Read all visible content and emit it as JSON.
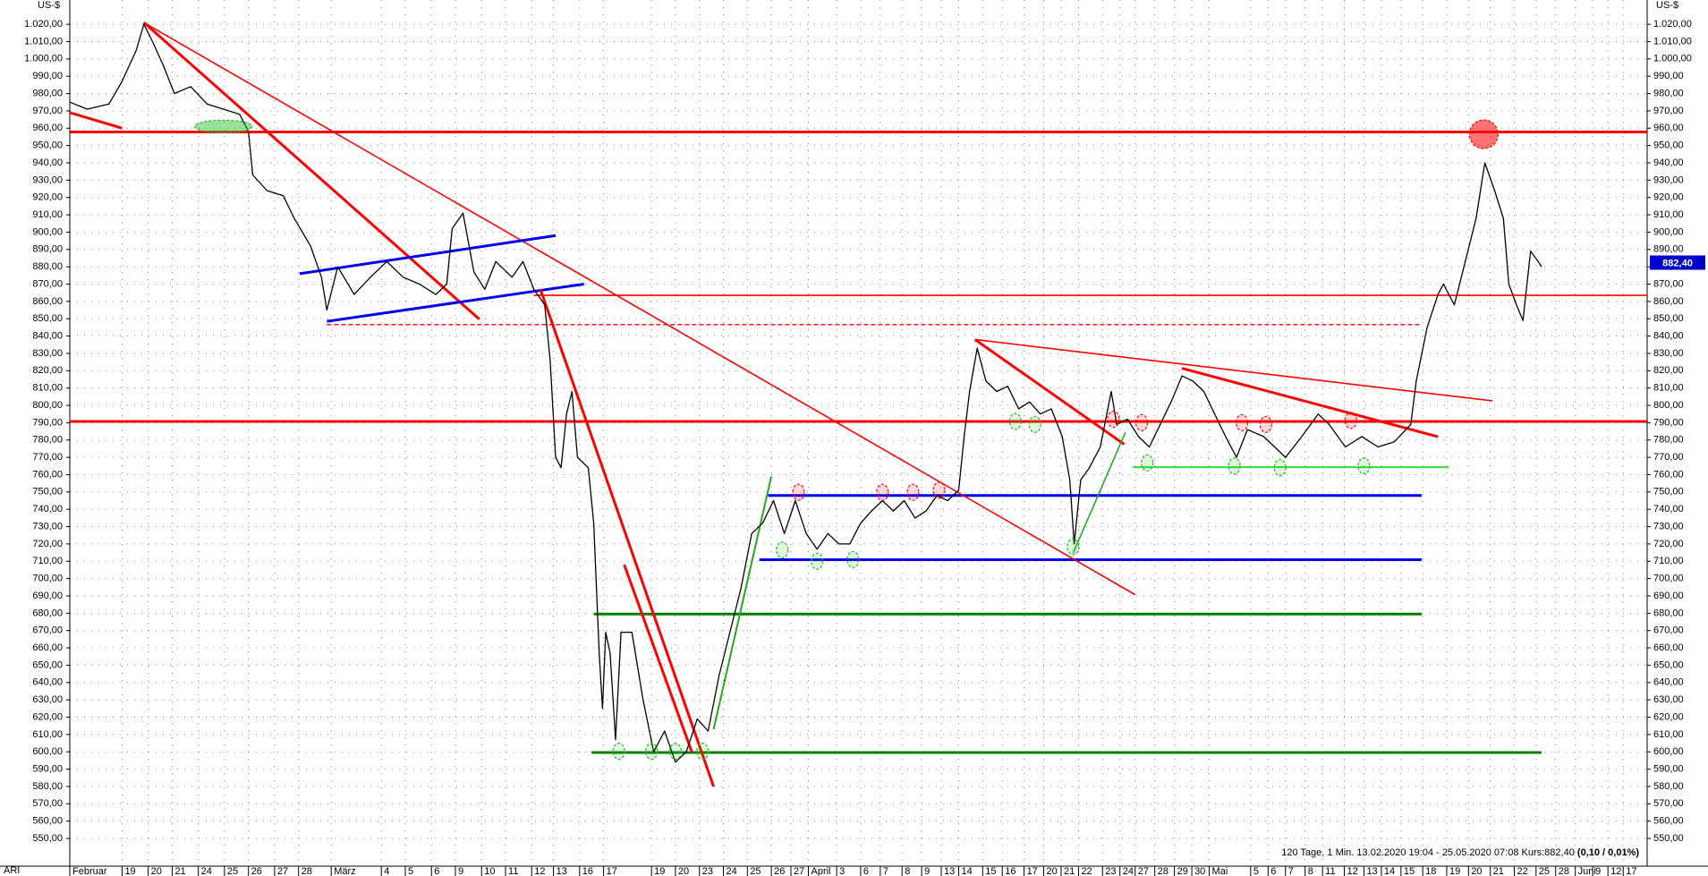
{
  "chart_data": {
    "type": "line",
    "y_unit_label": "US-$",
    "instrument": "ARI",
    "info": "120 Tage, 1 Min. 13.02.2020 19:04 - 25.05.2020 07:08 Kurs:882,40",
    "info_change": "(0,10 / 0,01%)",
    "last_value": {
      "value": 882.4,
      "label": "882,40"
    },
    "last_value_color": "#0000cc",
    "grid": true,
    "xlim": [
      0,
      72.4
    ],
    "ylim": [
      534,
      1034
    ],
    "yticks": [
      {
        "value": 550,
        "label": "550,00"
      },
      {
        "value": 560,
        "label": "560,00"
      },
      {
        "value": 570,
        "label": "570,00"
      },
      {
        "value": 580,
        "label": "580,00"
      },
      {
        "value": 590,
        "label": "590,00"
      },
      {
        "value": 600,
        "label": "600,00"
      },
      {
        "value": 610,
        "label": "610,00"
      },
      {
        "value": 620,
        "label": "620,00"
      },
      {
        "value": 630,
        "label": "630,00"
      },
      {
        "value": 640,
        "label": "640,00"
      },
      {
        "value": 650,
        "label": "650,00"
      },
      {
        "value": 660,
        "label": "660,00"
      },
      {
        "value": 670,
        "label": "670,00"
      },
      {
        "value": 680,
        "label": "680,00"
      },
      {
        "value": 690,
        "label": "690,00"
      },
      {
        "value": 700,
        "label": "700,00"
      },
      {
        "value": 710,
        "label": "710,00"
      },
      {
        "value": 720,
        "label": "720,00"
      },
      {
        "value": 730,
        "label": "730,00"
      },
      {
        "value": 740,
        "label": "740,00"
      },
      {
        "value": 750,
        "label": "750,00"
      },
      {
        "value": 760,
        "label": "760,00"
      },
      {
        "value": 770,
        "label": "770,00"
      },
      {
        "value": 780,
        "label": "780,00"
      },
      {
        "value": 790,
        "label": "790,00"
      },
      {
        "value": 800,
        "label": "800,00"
      },
      {
        "value": 810,
        "label": "810,00"
      },
      {
        "value": 820,
        "label": "820,00"
      },
      {
        "value": 830,
        "label": "830,00"
      },
      {
        "value": 840,
        "label": "840,00"
      },
      {
        "value": 850,
        "label": "850,00"
      },
      {
        "value": 860,
        "label": "860,00"
      },
      {
        "value": 870,
        "label": "870,00"
      },
      {
        "value": 880,
        "label": "880,00"
      },
      {
        "value": 890,
        "label": "890,00"
      },
      {
        "value": 900,
        "label": "900,00"
      },
      {
        "value": 910,
        "label": "910,00"
      },
      {
        "value": 920,
        "label": "920,00"
      },
      {
        "value": 930,
        "label": "930,00"
      },
      {
        "value": 940,
        "label": "940,00"
      },
      {
        "value": 950,
        "label": "950,00"
      },
      {
        "value": 960,
        "label": "960,00"
      },
      {
        "value": 970,
        "label": "970,00"
      },
      {
        "value": 980,
        "label": "980,00"
      },
      {
        "value": 990,
        "label": "990,00"
      },
      {
        "value": 1000,
        "label": "1.000,00"
      },
      {
        "value": 1010,
        "label": "1.010,00"
      },
      {
        "value": 1020,
        "label": "1.020,00"
      }
    ],
    "xticks": [
      {
        "value": 0,
        "label": "Februar"
      },
      {
        "value": 2.4,
        "label": "19"
      },
      {
        "value": 3.6,
        "label": "20"
      },
      {
        "value": 4.7,
        "label": "21"
      },
      {
        "value": 5.9,
        "label": "24"
      },
      {
        "value": 7.1,
        "label": "25"
      },
      {
        "value": 8.2,
        "label": "26"
      },
      {
        "value": 9.4,
        "label": "27"
      },
      {
        "value": 10.5,
        "label": "28"
      },
      {
        "value": 12,
        "label": "März"
      },
      {
        "value": 14.3,
        "label": "4"
      },
      {
        "value": 15.4,
        "label": "5"
      },
      {
        "value": 16.6,
        "label": "6"
      },
      {
        "value": 17.7,
        "label": "9"
      },
      {
        "value": 18.9,
        "label": "10"
      },
      {
        "value": 20,
        "label": "11"
      },
      {
        "value": 21.2,
        "label": "12"
      },
      {
        "value": 22.2,
        "label": "13"
      },
      {
        "value": 23.4,
        "label": "16"
      },
      {
        "value": 24.5,
        "label": "17"
      },
      {
        "value": 26.7,
        "label": "19"
      },
      {
        "value": 27.8,
        "label": "20"
      },
      {
        "value": 28.9,
        "label": "23"
      },
      {
        "value": 30,
        "label": "24"
      },
      {
        "value": 31.1,
        "label": "25"
      },
      {
        "value": 32.2,
        "label": "26"
      },
      {
        "value": 33.1,
        "label": "27"
      },
      {
        "value": 33.9,
        "label": "April"
      },
      {
        "value": 35.2,
        "label": "3"
      },
      {
        "value": 36.3,
        "label": "6"
      },
      {
        "value": 37.2,
        "label": "7"
      },
      {
        "value": 38.2,
        "label": "8"
      },
      {
        "value": 39.1,
        "label": "9"
      },
      {
        "value": 40,
        "label": "13"
      },
      {
        "value": 40.8,
        "label": "14"
      },
      {
        "value": 41.9,
        "label": "15"
      },
      {
        "value": 42.8,
        "label": "16"
      },
      {
        "value": 43.8,
        "label": "17"
      },
      {
        "value": 44.7,
        "label": "20"
      },
      {
        "value": 45.5,
        "label": "21"
      },
      {
        "value": 46.3,
        "label": "22"
      },
      {
        "value": 47.4,
        "label": "23"
      },
      {
        "value": 48.2,
        "label": "24"
      },
      {
        "value": 48.9,
        "label": "27"
      },
      {
        "value": 49.8,
        "label": "28"
      },
      {
        "value": 50.7,
        "label": "29"
      },
      {
        "value": 51.5,
        "label": "30"
      },
      {
        "value": 52.3,
        "label": "Mai"
      },
      {
        "value": 54.2,
        "label": "5"
      },
      {
        "value": 55,
        "label": "6"
      },
      {
        "value": 55.8,
        "label": "7"
      },
      {
        "value": 56.7,
        "label": "8"
      },
      {
        "value": 57.5,
        "label": "11"
      },
      {
        "value": 58.5,
        "label": "12"
      },
      {
        "value": 59.4,
        "label": "13"
      },
      {
        "value": 60.2,
        "label": "14"
      },
      {
        "value": 61.1,
        "label": "15"
      },
      {
        "value": 62.1,
        "label": "18"
      },
      {
        "value": 63.2,
        "label": "19"
      },
      {
        "value": 64.2,
        "label": "20"
      },
      {
        "value": 65.2,
        "label": "21"
      },
      {
        "value": 66.3,
        "label": "22"
      },
      {
        "value": 67.3,
        "label": "25"
      },
      {
        "value": 68.2,
        "label": "28"
      },
      {
        "value": 69.1,
        "label": "Juni"
      },
      {
        "value": 69.9,
        "label": "9"
      },
      {
        "value": 70.6,
        "label": "12"
      },
      {
        "value": 71.3,
        "label": "17"
      }
    ],
    "series": [
      {
        "color": "#000000",
        "x": [
          0,
          0.8,
          1.8,
          2.4,
          3.05,
          3.4,
          3.8,
          4.3,
          4.8,
          5.55,
          6.3,
          7.05,
          7.8,
          8.2,
          8.4,
          9.05,
          9.8,
          10.3,
          11.05,
          11.55,
          11.8,
          12.3,
          13.05,
          13.8,
          14.55,
          15.3,
          16.05,
          16.8,
          17.3,
          17.55,
          18.05,
          18.55,
          19.05,
          19.55,
          20.3,
          20.8,
          21.3,
          21.8,
          22.05,
          22.3,
          22.55,
          22.8,
          23.05,
          23.3,
          23.8,
          24.05,
          24.3,
          24.45,
          24.6,
          24.8,
          25.05,
          25.3,
          25.8,
          26.3,
          26.8,
          27.3,
          27.8,
          28.3,
          28.8,
          29.3,
          29.8,
          30.3,
          30.8,
          31.3,
          31.8,
          32.3,
          32.8,
          33.3,
          33.8,
          34.3,
          34.8,
          35.3,
          35.8,
          36.3,
          36.8,
          37.3,
          37.8,
          38.3,
          38.8,
          39.3,
          39.8,
          40.3,
          40.8,
          41.05,
          41.3,
          41.65,
          42.05,
          42.55,
          43.05,
          43.55,
          44.05,
          44.55,
          45.05,
          45.55,
          45.9,
          46.1,
          46.4,
          46.8,
          47.3,
          47.8,
          48.05,
          48.55,
          49.05,
          49.55,
          50.05,
          50.55,
          51.05,
          51.55,
          52.05,
          52.55,
          53.05,
          53.55,
          54.05,
          54.8,
          55.3,
          55.8,
          56.55,
          57.3,
          57.8,
          58.55,
          59.3,
          60.05,
          60.8,
          61.55,
          61.8,
          62.3,
          62.8,
          63.05,
          63.55,
          64.05,
          64.55,
          64.95,
          65.4,
          65.8,
          66.05,
          66.4,
          66.7,
          67.05,
          67.4,
          67.55
        ],
        "values": [
          975,
          971,
          974,
          987,
          1005,
          1020,
          1010,
          996,
          980,
          984,
          974,
          971,
          968,
          958,
          933,
          924,
          921,
          908,
          892,
          874,
          855,
          880,
          864,
          874,
          883,
          874,
          870,
          864,
          870,
          902,
          911,
          877,
          867,
          883,
          874,
          883,
          867,
          858,
          826,
          770,
          764,
          795,
          808,
          770,
          764,
          732,
          657,
          625,
          669,
          657,
          607,
          669,
          669,
          631,
          600,
          612,
          594,
          600,
          619,
          612,
          644,
          669,
          694,
          726,
          732,
          745,
          726,
          745,
          726,
          717,
          726,
          720,
          720,
          732,
          739,
          745,
          739,
          745,
          735,
          739,
          748,
          745,
          751,
          782,
          808,
          833,
          814,
          808,
          811,
          798,
          802,
          795,
          798,
          782,
          757,
          720,
          757,
          764,
          776,
          808,
          789,
          792,
          782,
          776,
          789,
          802,
          817,
          814,
          808,
          795,
          782,
          770,
          786,
          782,
          776,
          770,
          782,
          795,
          789,
          776,
          782,
          776,
          779,
          789,
          814,
          845,
          864,
          870,
          858,
          883,
          908,
          940,
          924,
          908,
          870,
          858,
          849,
          889,
          883,
          880
        ]
      }
    ],
    "lines": [
      {
        "color": "#ff0000",
        "style": "thick",
        "x": [
          0,
          72.4
        ],
        "values": [
          957.8,
          957.8
        ]
      },
      {
        "color": "#ff0000",
        "style": "thin",
        "x": [
          21.3,
          72.4
        ],
        "values": [
          863.5,
          863.5
        ]
      },
      {
        "color": "#ff0000",
        "style": "dashed",
        "x": [
          11.8,
          62.05
        ],
        "values": [
          846.6,
          846.6
        ]
      },
      {
        "color": "#ff0000",
        "style": "thick",
        "x": [
          0,
          72.4
        ],
        "values": [
          790.7,
          790.7
        ]
      },
      {
        "color": "#0000ee",
        "style": "thick",
        "x": [
          32.05,
          62.05
        ],
        "values": [
          748,
          748
        ]
      },
      {
        "color": "#0000ee",
        "style": "thick",
        "x": [
          31.65,
          62.05
        ],
        "values": [
          710.9,
          710.9
        ]
      },
      {
        "color": "#008000",
        "style": "thick",
        "x": [
          24.05,
          62.05
        ],
        "values": [
          679.5,
          679.5
        ]
      },
      {
        "color": "#008000",
        "style": "thick",
        "x": [
          23.95,
          67.55
        ],
        "values": [
          599.6,
          599.6
        ]
      },
      {
        "color": "#33dd33",
        "style": "medium",
        "x": [
          48.8,
          63.3
        ],
        "values": [
          764.3,
          764.3
        ]
      },
      {
        "color": "#ff0000",
        "style": "thick",
        "x": [
          3.4,
          18.8
        ],
        "values": [
          1021,
          849.7
        ]
      },
      {
        "color": "#ff0000",
        "style": "thin",
        "x": [
          3.4,
          48.9
        ],
        "values": [
          1021,
          690.7
        ]
      },
      {
        "color": "#ff0000",
        "style": "thick",
        "x": [
          0,
          2.4
        ],
        "values": [
          969,
          960
        ]
      },
      {
        "color": "#0000ee",
        "style": "thick",
        "x": [
          10.55,
          22.3
        ],
        "values": [
          876,
          898
        ]
      },
      {
        "color": "#0000ee",
        "style": "thick",
        "x": [
          11.8,
          23.6
        ],
        "values": [
          848.5,
          870
        ]
      },
      {
        "color": "#ff0000",
        "style": "thick",
        "x": [
          21.6,
          29.55
        ],
        "values": [
          867,
          580
        ]
      },
      {
        "color": "#ff0000",
        "style": "thick",
        "x": [
          25.45,
          28.55
        ],
        "values": [
          708,
          600
        ]
      },
      {
        "color": "#22aa22",
        "style": "medium",
        "x": [
          29.55,
          32.2
        ],
        "values": [
          613,
          759
        ]
      },
      {
        "color": "#ff0000",
        "style": "thick",
        "x": [
          41.55,
          48.4
        ],
        "values": [
          838,
          777.5
        ]
      },
      {
        "color": "#ff0000",
        "style": "thin",
        "x": [
          41.55,
          65.3
        ],
        "values": [
          838,
          802.6
        ]
      },
      {
        "color": "#ff0000",
        "style": "thick",
        "x": [
          51.05,
          62.8
        ],
        "values": [
          821.4,
          781.9
        ]
      },
      {
        "color": "#22aa22",
        "style": "thin",
        "x": [
          46.05,
          48.45
        ],
        "values": [
          714.6,
          784.4
        ]
      }
    ],
    "circles": [
      {
        "color": "#ff0000",
        "size": "large",
        "x": 64.9,
        "y": 956.5
      },
      {
        "color": "#22bb22",
        "size": "wide",
        "x": 7.05,
        "y": 961
      },
      {
        "color": "#22bb22",
        "size": "small",
        "x": 25.2,
        "y": 600.3
      },
      {
        "color": "#22bb22",
        "size": "small",
        "x": 26.7,
        "y": 600.3
      },
      {
        "color": "#22bb22",
        "size": "small",
        "x": 27.8,
        "y": 600.3
      },
      {
        "color": "#22bb22",
        "size": "small",
        "x": 29.05,
        "y": 600.3
      },
      {
        "color": "#22bb22",
        "size": "small",
        "x": 32.7,
        "y": 716.5
      },
      {
        "color": "#22bb22",
        "size": "small",
        "x": 34.3,
        "y": 710
      },
      {
        "color": "#22bb22",
        "size": "small",
        "x": 35.95,
        "y": 711
      },
      {
        "color": "#22bb22",
        "size": "small",
        "x": 43.4,
        "y": 790.7
      },
      {
        "color": "#22bb22",
        "size": "small",
        "x": 44.3,
        "y": 789
      },
      {
        "color": "#22bb22",
        "size": "small",
        "x": 46.05,
        "y": 718.4
      },
      {
        "color": "#22bb22",
        "size": "small",
        "x": 49.45,
        "y": 766.8
      },
      {
        "color": "#22bb22",
        "size": "small",
        "x": 53.45,
        "y": 765
      },
      {
        "color": "#22bb22",
        "size": "small",
        "x": 55.55,
        "y": 764
      },
      {
        "color": "#22bb22",
        "size": "small",
        "x": 59.4,
        "y": 765
      },
      {
        "color": "#ff0000",
        "size": "small",
        "x": 33.45,
        "y": 749.8
      },
      {
        "color": "#ff0000",
        "size": "small",
        "x": 37.3,
        "y": 749.8
      },
      {
        "color": "#ff0000",
        "size": "small",
        "x": 38.7,
        "y": 749.8
      },
      {
        "color": "#ff0000",
        "size": "small",
        "x": 39.9,
        "y": 751
      },
      {
        "color": "#ff0000",
        "size": "small",
        "x": 47.9,
        "y": 792
      },
      {
        "color": "#ff0000",
        "size": "small",
        "x": 49.2,
        "y": 790
      },
      {
        "color": "#ff0000",
        "size": "small",
        "x": 53.8,
        "y": 790
      },
      {
        "color": "#ff0000",
        "size": "small",
        "x": 54.9,
        "y": 789
      },
      {
        "color": "#ff0000",
        "size": "small",
        "x": 58.8,
        "y": 791.3
      }
    ]
  }
}
